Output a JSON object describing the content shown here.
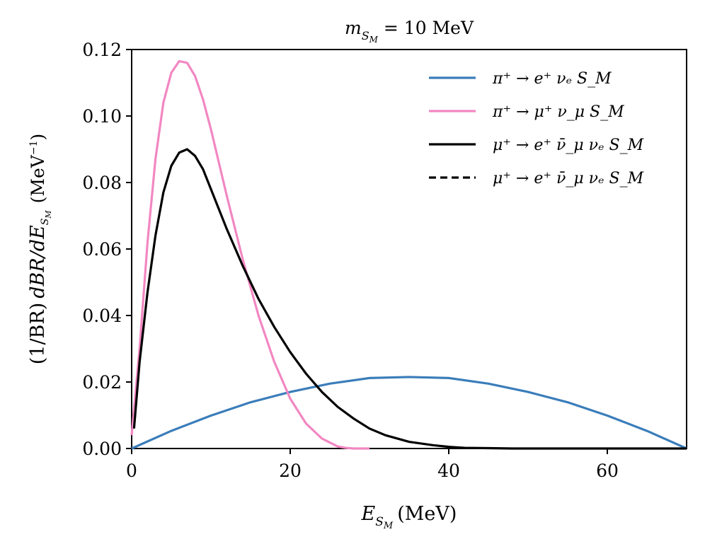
{
  "chart_data": {
    "type": "line",
    "title": "m_{S_M} = 10 MeV",
    "xlabel": "E_{S_M}  (MeV)",
    "ylabel": "(1/BR) dBR/dE_{S_M}  (MeV⁻¹)",
    "xlim": [
      0,
      70
    ],
    "ylim": [
      0,
      0.12
    ],
    "x_ticks": [
      0,
      20,
      40,
      60
    ],
    "x_tick_labels": [
      "0",
      "20",
      "40",
      "60"
    ],
    "y_ticks": [
      0,
      0.02,
      0.04,
      0.06,
      0.08,
      0.1,
      0.12
    ],
    "y_tick_labels": [
      "0.00",
      "0.02",
      "0.04",
      "0.06",
      "0.08",
      "0.10",
      "0.12"
    ],
    "legend_position": "top-right",
    "series": [
      {
        "name": "π⁺ → e⁺ νₑ S_M",
        "color": "#3a7dba",
        "style": "solid",
        "x": [
          0,
          5,
          10,
          15,
          20,
          25,
          30,
          35,
          40,
          45,
          50,
          55,
          60,
          65,
          70
        ],
        "y": [
          0,
          0.0053,
          0.0099,
          0.0139,
          0.017,
          0.0195,
          0.0212,
          0.0215,
          0.0212,
          0.0195,
          0.017,
          0.0139,
          0.0099,
          0.0053,
          0
        ]
      },
      {
        "name": "π⁺ → μ⁺ ν_μ S_M",
        "color": "#f287c2",
        "style": "solid",
        "x": [
          0,
          1,
          2,
          3,
          4,
          5,
          6,
          7,
          8,
          9,
          10,
          12,
          14,
          16,
          18,
          20,
          22,
          24,
          26,
          27,
          28,
          30
        ],
        "y": [
          0.004,
          0.03,
          0.062,
          0.087,
          0.104,
          0.113,
          0.1165,
          0.116,
          0.112,
          0.105,
          0.096,
          0.076,
          0.057,
          0.04,
          0.026,
          0.015,
          0.0075,
          0.003,
          0.0006,
          0.0002,
          0,
          0
        ]
      },
      {
        "name": "μ⁺ → e⁺ ν̄_μ νₑ S_M",
        "color": "#000000",
        "style": "solid",
        "x": [
          0.3,
          1,
          2,
          3,
          4,
          5,
          6,
          7,
          8,
          9,
          10,
          12,
          14,
          16,
          18,
          20,
          22,
          24,
          26,
          28,
          30,
          32,
          35,
          38,
          40,
          42,
          45,
          48,
          50,
          55,
          60,
          65,
          70
        ],
        "y": [
          0.006,
          0.026,
          0.047,
          0.064,
          0.077,
          0.085,
          0.089,
          0.09,
          0.088,
          0.084,
          0.078,
          0.066,
          0.055,
          0.045,
          0.0365,
          0.029,
          0.0225,
          0.017,
          0.0125,
          0.009,
          0.006,
          0.004,
          0.002,
          0.001,
          0.0005,
          0.0002,
          0.0001,
          0,
          0,
          0,
          0,
          0,
          0
        ]
      },
      {
        "name": "μ⁺ → e⁺ ν̄_μ νₑ S_M",
        "color": "#000000",
        "style": "dashed",
        "x": [],
        "y": []
      }
    ]
  }
}
